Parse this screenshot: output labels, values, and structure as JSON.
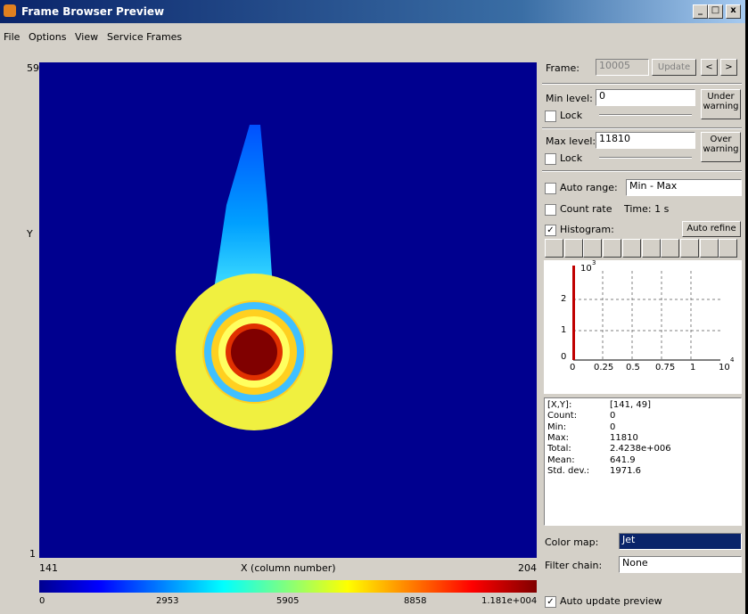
{
  "window": {
    "title": "Frame Browser Preview"
  },
  "menu": [
    "File",
    "Options",
    "View",
    "Service Frames"
  ],
  "image": {
    "y_max": "59",
    "y_min": "1",
    "y_label": "Y",
    "x_min": "141",
    "x_label": "X (column number)",
    "x_max": "204",
    "colorbar_labels": [
      "0",
      "2953",
      "5905",
      "8858",
      "1.181e+004"
    ]
  },
  "panel": {
    "frame_label": "Frame:",
    "frame_value": "10005",
    "update": "Update",
    "prev": "<",
    "next": ">",
    "min_label": "Min level:",
    "min_value": "0",
    "under_warning": [
      "Under",
      "warning"
    ],
    "min_lock": "Lock",
    "max_label": "Max level:",
    "max_value": "11810",
    "over_warning": [
      "Over",
      "warning"
    ],
    "max_lock": "Lock",
    "auto_range": "Auto range:",
    "range_mode": "Min - Max",
    "count_rate": "Count rate",
    "time": "Time: 1 s",
    "histogram": "Histogram:",
    "auto_refine": "Auto refine",
    "hist_plot": {
      "y_base": "10",
      "y_exp": "3",
      "yticks": [
        "0",
        "1",
        "2"
      ],
      "xticks": [
        "0",
        "0.25",
        "0.5",
        "0.75",
        "1"
      ],
      "x_base": "10",
      "x_exp": "4"
    },
    "stats": [
      [
        "[X,Y]:",
        "[141, 49]"
      ],
      [
        "Count:",
        "0"
      ],
      [
        "Min:",
        "0"
      ],
      [
        "Max:",
        "11810"
      ],
      [
        "Total:",
        "2.4238e+006"
      ],
      [
        "Mean:",
        "641.9"
      ],
      [
        "Std. dev.:",
        "1971.6"
      ]
    ],
    "color_map_label": "Color map:",
    "color_map": "Jet",
    "filter_label": "Filter chain:",
    "filter": "None",
    "auto_update": "Auto update preview"
  }
}
